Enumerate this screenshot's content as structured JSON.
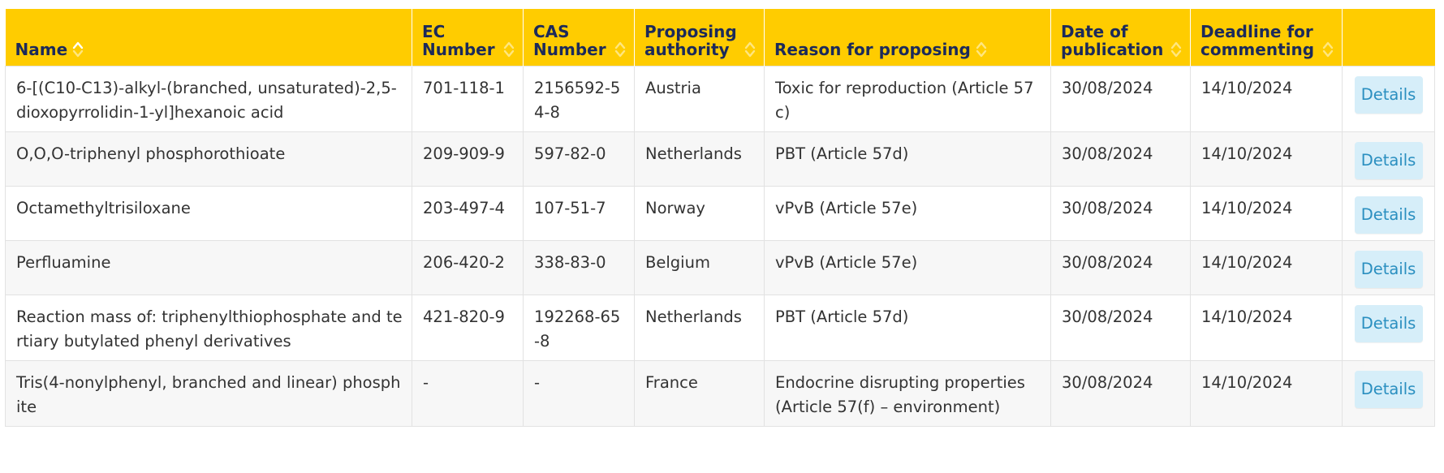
{
  "colors": {
    "header_bg": "#ffcc00",
    "header_text": "#1c2a5a",
    "button_bg": "#d6eef9",
    "button_text": "#2a8fc0"
  },
  "table": {
    "headers": {
      "name": "Name",
      "ec_number_1": "EC",
      "ec_number_2": "Number",
      "cas_number_1": "CAS",
      "cas_number_2": "Number",
      "proposing_authority_1": "Proposing",
      "proposing_authority_2": "authority",
      "reason": "Reason for proposing",
      "date_publication_1": "Date of",
      "date_publication_2": "publication",
      "deadline_1": "Deadline for",
      "deadline_2": "commenting"
    },
    "rows": [
      {
        "name": "6-[(C10-C13)-alkyl-(branched, unsaturated)-2,5-dioxopyrrolidin-1-yl]hexanoic acid",
        "ec": "701-118-1",
        "cas": "2156592-54-8",
        "authority": "Austria",
        "reason": "Toxic for reproduction (Article 57c)",
        "date": "30/08/2024",
        "deadline": "14/10/2024",
        "action": "Details"
      },
      {
        "name": "O,O,O-triphenyl phosphorothioate",
        "ec": "209-909-9",
        "cas": "597-82-0",
        "authority": "Netherlands",
        "reason": "PBT (Article 57d)",
        "date": "30/08/2024",
        "deadline": "14/10/2024",
        "action": "Details"
      },
      {
        "name": "Octamethyltrisiloxane",
        "ec": "203-497-4",
        "cas": "107-51-7",
        "authority": "Norway",
        "reason": "vPvB (Article 57e)",
        "date": "30/08/2024",
        "deadline": "14/10/2024",
        "action": "Details"
      },
      {
        "name": "Perfluamine",
        "ec": "206-420-2",
        "cas": "338-83-0",
        "authority": "Belgium",
        "reason": "vPvB (Article 57e)",
        "date": "30/08/2024",
        "deadline": "14/10/2024",
        "action": "Details"
      },
      {
        "name": "Reaction mass of: triphenylthiophosphate and tertiary butylated phenyl derivatives",
        "ec": "421-820-9",
        "cas": "192268-65-8",
        "authority": "Netherlands",
        "reason": "PBT (Article 57d)",
        "date": "30/08/2024",
        "deadline": "14/10/2024",
        "action": "Details"
      },
      {
        "name": "Tris(4-nonylphenyl, branched and linear) phosphite",
        "ec": "-",
        "cas": "-",
        "authority": "France",
        "reason": "Endocrine disrupting properties (Article 57(f) – environment)",
        "date": "30/08/2024",
        "deadline": "14/10/2024",
        "action": "Details"
      }
    ]
  }
}
